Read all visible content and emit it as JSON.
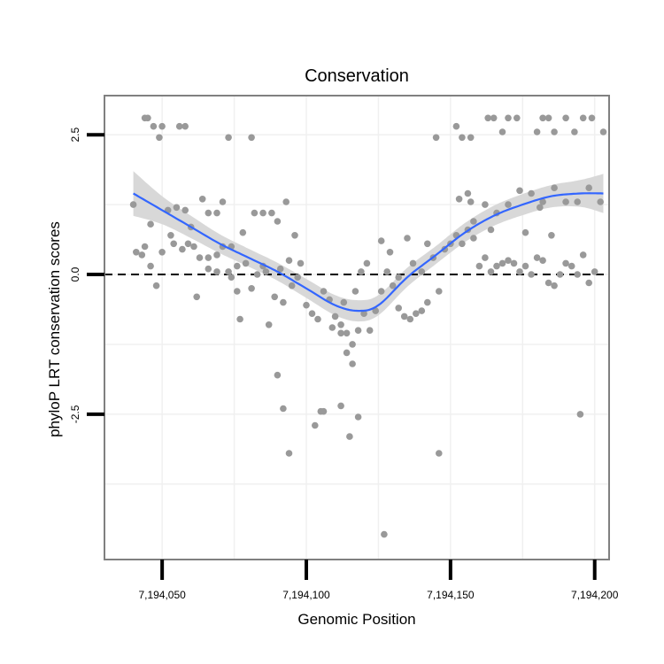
{
  "chart_data": {
    "type": "scatter",
    "title": "Conservation",
    "xlabel": "Genomic Position",
    "ylabel": "phyloP LRT conservation scores",
    "xlim": [
      7194030,
      7194205
    ],
    "ylim": [
      -5.1,
      3.2
    ],
    "x_ticks": [
      7194050,
      7194100,
      7194150,
      7194200
    ],
    "x_tick_labels": [
      "7,194,050",
      "7,194,100",
      "7,194,150",
      "7,194,200"
    ],
    "y_ticks": [
      2.5,
      0.0,
      -2.5
    ],
    "y_tick_labels": [
      "2.5",
      "0.0",
      "-2.5"
    ],
    "grid": true,
    "reference_line": {
      "y": 0,
      "style": "dashed"
    },
    "colors": {
      "points": "#999999",
      "smooth_line": "#3366FF",
      "confidence_band": "#d6d6d6",
      "panel_border": "#808080",
      "grid": "#f0f0f0",
      "reference_line": "#000000"
    },
    "points": [
      [
        7194044,
        2.8
      ],
      [
        7194045,
        2.8
      ],
      [
        7194047,
        2.65
      ],
      [
        7194050,
        2.65
      ],
      [
        7194049,
        2.45
      ],
      [
        7194056,
        2.65
      ],
      [
        7194058,
        2.65
      ],
      [
        7194073,
        2.45
      ],
      [
        7194081,
        2.45
      ],
      [
        7194040,
        1.25
      ],
      [
        7194044,
        0.5
      ],
      [
        7194046,
        0.9
      ],
      [
        7194052,
        1.15
      ],
      [
        7194055,
        1.2
      ],
      [
        7194058,
        1.15
      ],
      [
        7194060,
        0.85
      ],
      [
        7194064,
        1.35
      ],
      [
        7194066,
        1.1
      ],
      [
        7194069,
        1.1
      ],
      [
        7194071,
        1.3
      ],
      [
        7194074,
        0.5
      ],
      [
        7194078,
        0.75
      ],
      [
        7194082,
        1.1
      ],
      [
        7194085,
        1.1
      ],
      [
        7194088,
        1.1
      ],
      [
        7194090,
        0.95
      ],
      [
        7194093,
        1.3
      ],
      [
        7194096,
        0.7
      ],
      [
        7194041,
        0.4
      ],
      [
        7194043,
        0.35
      ],
      [
        7194046,
        0.15
      ],
      [
        7194050,
        0.4
      ],
      [
        7194054,
        0.55
      ],
      [
        7194057,
        0.45
      ],
      [
        7194061,
        0.5
      ],
      [
        7194063,
        0.3
      ],
      [
        7194066,
        0.3
      ],
      [
        7194069,
        0.35
      ],
      [
        7194071,
        0.5
      ],
      [
        7194073,
        0.05
      ],
      [
        7194076,
        0.15
      ],
      [
        7194079,
        0.2
      ],
      [
        7194083,
        0.0
      ],
      [
        7194086,
        0.05
      ],
      [
        7194091,
        0.1
      ],
      [
        7194095,
        -0.2
      ],
      [
        7194048,
        -0.2
      ],
      [
        7194053,
        0.7
      ],
      [
        7194059,
        0.55
      ],
      [
        7194062,
        -0.4
      ],
      [
        7194066,
        0.1
      ],
      [
        7194069,
        0.05
      ],
      [
        7194074,
        -0.05
      ],
      [
        7194076,
        -0.3
      ],
      [
        7194081,
        -0.25
      ],
      [
        7194085,
        0.15
      ],
      [
        7194077,
        -0.8
      ],
      [
        7194087,
        -0.9
      ],
      [
        7194089,
        -0.4
      ],
      [
        7194092,
        -0.5
      ],
      [
        7194094,
        0.25
      ],
      [
        7194097,
        -0.05
      ],
      [
        7194098,
        0.2
      ],
      [
        7194100,
        -0.55
      ],
      [
        7194102,
        -0.7
      ],
      [
        7194104,
        -0.8
      ],
      [
        7194106,
        -0.3
      ],
      [
        7194108,
        -0.45
      ],
      [
        7194110,
        -0.75
      ],
      [
        7194112,
        -0.9
      ],
      [
        7194114,
        -1.05
      ],
      [
        7194116,
        -1.25
      ],
      [
        7194118,
        -1.0
      ],
      [
        7194120,
        -0.7
      ],
      [
        7194122,
        -1.0
      ],
      [
        7194124,
        -0.65
      ],
      [
        7194109,
        -0.95
      ],
      [
        7194113,
        -0.5
      ],
      [
        7194117,
        -0.3
      ],
      [
        7194119,
        0.05
      ],
      [
        7194121,
        0.2
      ],
      [
        7194126,
        -0.3
      ],
      [
        7194128,
        0.05
      ],
      [
        7194130,
        -0.2
      ],
      [
        7194132,
        -0.6
      ],
      [
        7194134,
        -0.75
      ],
      [
        7194136,
        -0.8
      ],
      [
        7194138,
        -0.7
      ],
      [
        7194140,
        -0.65
      ],
      [
        7194142,
        -0.5
      ],
      [
        7194126,
        0.6
      ],
      [
        7194129,
        0.4
      ],
      [
        7194132,
        -0.05
      ],
      [
        7194135,
        0.65
      ],
      [
        7194137,
        0.2
      ],
      [
        7194140,
        0.05
      ],
      [
        7194142,
        0.55
      ],
      [
        7194144,
        0.3
      ],
      [
        7194146,
        -0.3
      ],
      [
        7194148,
        0.45
      ],
      [
        7194150,
        0.55
      ],
      [
        7194152,
        0.7
      ],
      [
        7194154,
        0.55
      ],
      [
        7194156,
        0.8
      ],
      [
        7194158,
        0.95
      ],
      [
        7194160,
        0.15
      ],
      [
        7194162,
        0.3
      ],
      [
        7194164,
        0.05
      ],
      [
        7194166,
        0.15
      ],
      [
        7194168,
        0.2
      ],
      [
        7194170,
        0.25
      ],
      [
        7194172,
        0.2
      ],
      [
        7194174,
        0.05
      ],
      [
        7194176,
        0.15
      ],
      [
        7194178,
        0.0
      ],
      [
        7194180,
        0.3
      ],
      [
        7194182,
        0.25
      ],
      [
        7194184,
        -0.15
      ],
      [
        7194186,
        -0.2
      ],
      [
        7194188,
        0.0
      ],
      [
        7194190,
        0.2
      ],
      [
        7194192,
        0.15
      ],
      [
        7194194,
        0.0
      ],
      [
        7194196,
        0.35
      ],
      [
        7194198,
        -0.15
      ],
      [
        7194200,
        0.05
      ],
      [
        7194153,
        1.35
      ],
      [
        7194157,
        1.3
      ],
      [
        7194162,
        1.25
      ],
      [
        7194166,
        1.1
      ],
      [
        7194170,
        1.25
      ],
      [
        7194174,
        1.5
      ],
      [
        7194178,
        1.45
      ],
      [
        7194182,
        1.3
      ],
      [
        7194186,
        1.55
      ],
      [
        7194190,
        1.3
      ],
      [
        7194194,
        1.3
      ],
      [
        7194198,
        1.55
      ],
      [
        7194202,
        1.3
      ],
      [
        7194176,
        0.75
      ],
      [
        7194181,
        1.2
      ],
      [
        7194185,
        0.7
      ],
      [
        7194158,
        0.65
      ],
      [
        7194164,
        0.8
      ],
      [
        7194145,
        2.45
      ],
      [
        7194152,
        2.65
      ],
      [
        7194154,
        2.45
      ],
      [
        7194157,
        2.45
      ],
      [
        7194163,
        2.8
      ],
      [
        7194165,
        2.8
      ],
      [
        7194168,
        2.55
      ],
      [
        7194170,
        2.8
      ],
      [
        7194173,
        2.8
      ],
      [
        7194180,
        2.55
      ],
      [
        7194182,
        2.8
      ],
      [
        7194184,
        2.8
      ],
      [
        7194186,
        2.55
      ],
      [
        7194190,
        2.8
      ],
      [
        7194193,
        2.55
      ],
      [
        7194196,
        2.8
      ],
      [
        7194199,
        2.8
      ],
      [
        7194203,
        2.55
      ],
      [
        7194094,
        -3.2
      ],
      [
        7194090,
        -1.8
      ],
      [
        7194092,
        -2.4
      ],
      [
        7194103,
        -2.7
      ],
      [
        7194105,
        -2.45
      ],
      [
        7194106,
        -2.45
      ],
      [
        7194112,
        -2.35
      ],
      [
        7194115,
        -2.9
      ],
      [
        7194118,
        -2.55
      ],
      [
        7194114,
        -1.4
      ],
      [
        7194116,
        -1.6
      ],
      [
        7194112,
        -1.05
      ],
      [
        7194127,
        -4.65
      ],
      [
        7194146,
        -3.2
      ],
      [
        7194156,
        1.45
      ],
      [
        7194195,
        -2.5
      ]
    ],
    "smooth_fit": {
      "x": [
        7194040,
        7194050,
        7194060,
        7194070,
        7194080,
        7194090,
        7194100,
        7194110,
        7194118,
        7194125,
        7194135,
        7194145,
        7194155,
        7194165,
        7194175,
        7194185,
        7194195,
        7194203
      ],
      "y": [
        1.45,
        1.15,
        0.85,
        0.55,
        0.3,
        0.05,
        -0.25,
        -0.55,
        -0.65,
        -0.55,
        -0.05,
        0.35,
        0.75,
        1.05,
        1.25,
        1.4,
        1.45,
        1.45
      ],
      "se": [
        0.4,
        0.25,
        0.2,
        0.17,
        0.16,
        0.16,
        0.17,
        0.18,
        0.19,
        0.18,
        0.17,
        0.16,
        0.17,
        0.18,
        0.19,
        0.2,
        0.24,
        0.35
      ]
    }
  }
}
